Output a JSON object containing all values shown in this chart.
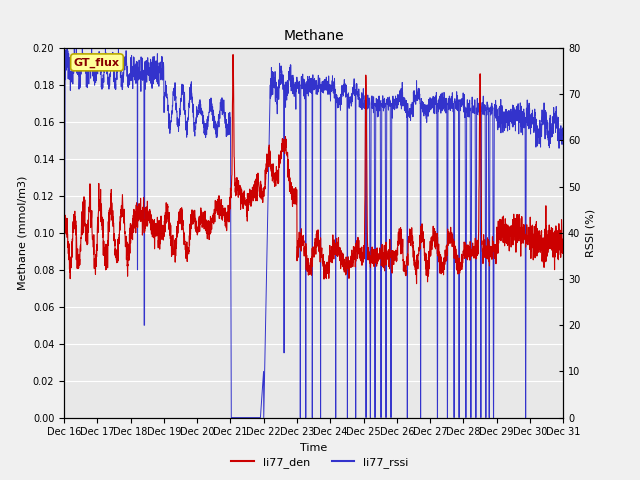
{
  "title": "Methane",
  "ylabel_left": "Methane (mmol/m3)",
  "ylabel_right": "RSSI (%)",
  "xlabel": "Time",
  "ylim_left": [
    0.0,
    0.2
  ],
  "ylim_right": [
    0,
    80
  ],
  "xlim": [
    0,
    15
  ],
  "xtick_labels": [
    "Dec 16",
    "Dec 17",
    "Dec 18",
    "Dec 19",
    "Dec 20",
    "Dec 21",
    "Dec 22",
    "Dec 23",
    "Dec 24",
    "Dec 25",
    "Dec 26",
    "Dec 27",
    "Dec 28",
    "Dec 29",
    "Dec 30",
    "Dec 31"
  ],
  "legend_label": "GT_flux",
  "line1_label": "li77_den",
  "line2_label": "li77_rssi",
  "line1_color": "#cc0000",
  "line2_color": "#3333cc",
  "bg_color": "#e8e8e8",
  "fig_bg_color": "#f0f0f0",
  "gt_flux_bg": "#ffff99",
  "gt_flux_border": "#bbaa00",
  "gt_flux_text_color": "#880000",
  "title_fontsize": 10,
  "label_fontsize": 8,
  "tick_fontsize": 7
}
